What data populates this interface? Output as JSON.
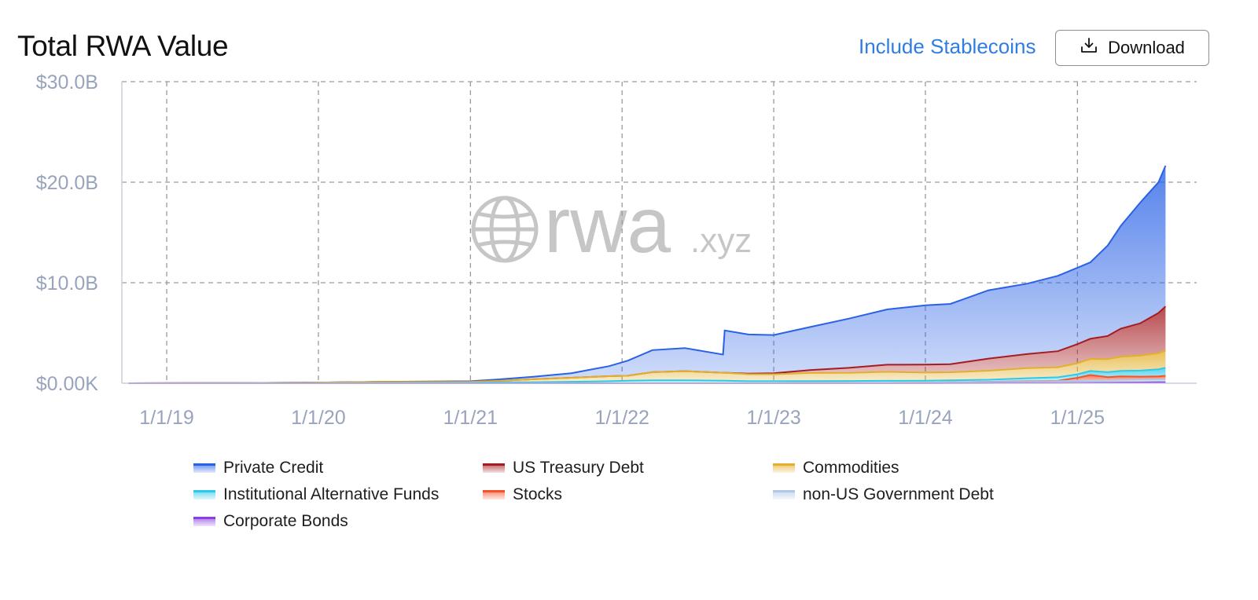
{
  "header": {
    "title": "Total RWA Value",
    "toggle_label": "Include Stablecoins",
    "download_label": "Download"
  },
  "icons": {
    "download": "download-icon",
    "watermark": "globe-icon"
  },
  "watermark": {
    "brand": "rwa",
    "suffix": ".xyz"
  },
  "chart_data": {
    "type": "area",
    "stacked": true,
    "x_ticks": [
      "1/1/19",
      "1/1/20",
      "1/1/21",
      "1/1/22",
      "1/1/23",
      "1/1/24",
      "1/1/25"
    ],
    "y_ticks": [
      "$0.00K",
      "$10.0B",
      "$20.0B",
      "$30.0B"
    ],
    "y_unit": "billion USD",
    "ylim": [
      0,
      30
    ],
    "xlim": [
      "2018-09-15",
      "2025-10-15"
    ],
    "grid": true,
    "legend_position": "bottom",
    "x": [
      "2018-10-01",
      "2019-06-01",
      "2020-01-01",
      "2020-06-01",
      "2021-01-01",
      "2021-03-15",
      "2021-06-01",
      "2021-09-01",
      "2021-12-01",
      "2022-01-15",
      "2022-03-15",
      "2022-06-01",
      "2022-09-01",
      "2022-09-05",
      "2022-11-01",
      "2023-01-01",
      "2023-04-01",
      "2023-07-01",
      "2023-10-01",
      "2024-01-01",
      "2024-03-01",
      "2024-06-01",
      "2024-09-01",
      "2024-11-15",
      "2025-01-01",
      "2025-02-01",
      "2025-03-15",
      "2025-04-15",
      "2025-06-01",
      "2025-07-15",
      "2025-08-01"
    ],
    "series": [
      {
        "name": "Corporate Bonds",
        "color": "#8b3fe0",
        "values": [
          0,
          0,
          0,
          0,
          0,
          0,
          0,
          0,
          0,
          0,
          0,
          0,
          0,
          0,
          0,
          0,
          0,
          0,
          0,
          0,
          0.01,
          0.02,
          0.03,
          0.03,
          0.04,
          0.05,
          0.06,
          0.07,
          0.08,
          0.09,
          0.09
        ]
      },
      {
        "name": "non-US Government Debt",
        "color": "#b3c8e6",
        "values": [
          0,
          0,
          0,
          0,
          0,
          0,
          0,
          0,
          0,
          0,
          0,
          0,
          0,
          0,
          0,
          0,
          0.02,
          0.03,
          0.04,
          0.06,
          0.08,
          0.12,
          0.15,
          0.18,
          0.2,
          0.22,
          0.24,
          0.26,
          0.28,
          0.3,
          0.3
        ]
      },
      {
        "name": "Stocks",
        "color": "#f2552c",
        "values": [
          0,
          0,
          0,
          0,
          0,
          0,
          0,
          0,
          0,
          0,
          0,
          0,
          0,
          0,
          0,
          0,
          0,
          0,
          0,
          0,
          0,
          0.01,
          0.02,
          0.03,
          0.3,
          0.55,
          0.3,
          0.35,
          0.3,
          0.3,
          0.35
        ]
      },
      {
        "name": "Institutional Alternative Funds",
        "color": "#2ec8e8",
        "values": [
          0,
          0.01,
          0.02,
          0.03,
          0.05,
          0.1,
          0.1,
          0.15,
          0.2,
          0.25,
          0.3,
          0.3,
          0.25,
          0.25,
          0.2,
          0.2,
          0.2,
          0.2,
          0.2,
          0.2,
          0.2,
          0.2,
          0.3,
          0.35,
          0.35,
          0.4,
          0.5,
          0.55,
          0.6,
          0.7,
          0.8
        ]
      },
      {
        "name": "Commodities",
        "color": "#e2b02d",
        "values": [
          0,
          0.01,
          0.05,
          0.1,
          0.1,
          0.15,
          0.3,
          0.4,
          0.5,
          0.5,
          0.8,
          0.9,
          0.8,
          0.8,
          0.7,
          0.7,
          0.8,
          0.8,
          0.9,
          0.8,
          0.8,
          0.9,
          1.0,
          1.0,
          1.1,
          1.2,
          1.3,
          1.4,
          1.5,
          1.6,
          1.7
        ]
      },
      {
        "name": "US Treasury Debt",
        "color": "#a51d22",
        "values": [
          0,
          0,
          0,
          0,
          0,
          0,
          0,
          0,
          0,
          0,
          0,
          0,
          0,
          0,
          0.05,
          0.1,
          0.3,
          0.5,
          0.7,
          0.8,
          0.8,
          1.2,
          1.4,
          1.6,
          1.9,
          2.0,
          2.3,
          2.8,
          3.2,
          4.0,
          4.4
        ]
      },
      {
        "name": "Private Credit",
        "color": "#2a62e6",
        "values": [
          0,
          0,
          0,
          0.02,
          0.05,
          0.15,
          0.25,
          0.45,
          1.0,
          1.5,
          2.2,
          2.3,
          1.8,
          4.2,
          3.9,
          3.8,
          4.3,
          4.9,
          5.5,
          5.9,
          6.0,
          6.8,
          7.0,
          7.5,
          7.6,
          7.6,
          9.0,
          10.2,
          12.0,
          13.0,
          14.0
        ]
      }
    ]
  },
  "legend": [
    {
      "label": "Private Credit",
      "color": "#2a62e6"
    },
    {
      "label": "US Treasury Debt",
      "color": "#a51d22"
    },
    {
      "label": "Commodities",
      "color": "#e2b02d"
    },
    {
      "label": "Institutional Alternative Funds",
      "color": "#2ec8e8"
    },
    {
      "label": "Stocks",
      "color": "#f2552c"
    },
    {
      "label": "non-US Government Debt",
      "color": "#b3c8e6"
    },
    {
      "label": "Corporate Bonds",
      "color": "#8b3fe0"
    }
  ]
}
